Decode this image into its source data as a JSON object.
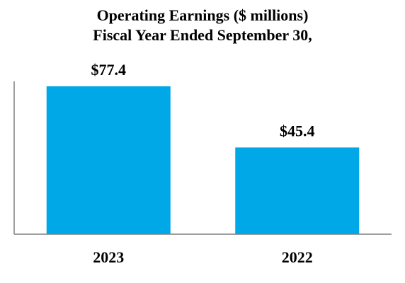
{
  "chart_data": {
    "type": "bar",
    "title": "Operating Earnings ($ millions)",
    "subtitle": "Fiscal Year Ended September 30,",
    "categories": [
      "2023",
      "2022"
    ],
    "values": [
      77.4,
      45.4
    ],
    "data_labels": [
      "$77.4",
      "$45.4"
    ],
    "bar_color": "#00a8e8",
    "axis_color": "#7f7f7f",
    "xlabel": "",
    "ylabel": "",
    "ylim": [
      0,
      100
    ],
    "grid": false,
    "legend": "none"
  }
}
